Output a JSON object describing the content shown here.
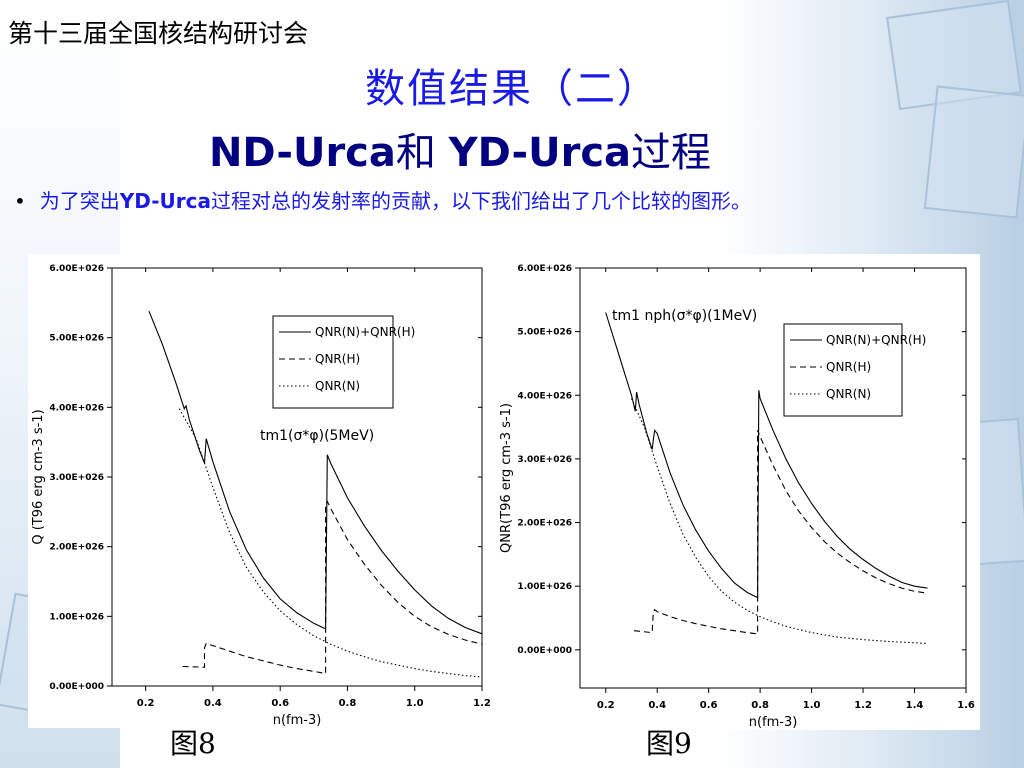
{
  "header": {
    "conference": "第十三届全国核结构研讨会",
    "title": "数值结果（二）",
    "subtitle_bold1": "ND-Urca",
    "subtitle_mid": "和 ",
    "subtitle_bold2": "YD-Urca",
    "subtitle_end": "过程"
  },
  "bullet": {
    "pre": "为了突出",
    "bold": "YD-Urca",
    "post": "过程对总的发射率的贡献，以下我们给出了几个比较的图形。"
  },
  "figure_labels": [
    "图8",
    "图9"
  ],
  "chart_data": [
    {
      "type": "line",
      "xlabel": "n(fm-3)",
      "ylabel": "Q (T96 erg cm-3 s-1)",
      "annotation": "tm1(σ*φ)(5MeV)",
      "xlim": [
        0.1,
        1.2
      ],
      "ylim": [
        0,
        6e+26
      ],
      "xticks": [
        "0.2",
        "0.4",
        "0.6",
        "0.8",
        "1.0",
        "1.2"
      ],
      "yticks": [
        "0.00E+000",
        "1.00E+026",
        "2.00E+026",
        "3.00E+026",
        "4.00E+026",
        "5.00E+026",
        "6.00E+026"
      ],
      "legend": [
        "QNR(N)+QNR(H)",
        "QNR(H)",
        "QNR(N)"
      ],
      "legend_position": "top-right",
      "series": [
        {
          "name": "QNR(N)+QNR(H)",
          "style": "solid",
          "x": [
            0.21,
            0.25,
            0.29,
            0.315,
            0.32,
            0.33,
            0.36,
            0.375,
            0.38,
            0.4,
            0.45,
            0.5,
            0.55,
            0.6,
            0.65,
            0.7,
            0.735,
            0.74,
            0.75,
            0.8,
            0.85,
            0.9,
            0.95,
            1.0,
            1.05,
            1.1,
            1.15,
            1.2
          ],
          "y": [
            5.38e+26,
            4.9e+26,
            4.35e+26,
            3.98e+26,
            4.02e+26,
            3.82e+26,
            3.38e+26,
            3.2e+26,
            3.55e+26,
            3.22e+26,
            2.5e+26,
            1.95e+26,
            1.55e+26,
            1.25e+26,
            1.05e+26,
            9e+25,
            8.2e+25,
            3.32e+26,
            3.2e+26,
            2.7e+26,
            2.3e+26,
            1.95e+26,
            1.65e+26,
            1.38e+26,
            1.15e+26,
            9.7e+25,
            8.4e+25,
            7.5e+25
          ]
        },
        {
          "name": "QNR(H)",
          "style": "dashed",
          "x": [
            0.31,
            0.375,
            0.375,
            0.38,
            0.4,
            0.45,
            0.5,
            0.55,
            0.6,
            0.65,
            0.7,
            0.735,
            0.735,
            0.74,
            0.75,
            0.8,
            0.85,
            0.9,
            0.95,
            1.0,
            1.05,
            1.1,
            1.15,
            1.2
          ],
          "y": [
            2.8e+25,
            2.7e+25,
            5.5e+25,
            6.1e+25,
            5.8e+25,
            5e+25,
            4.2e+25,
            3.6e+25,
            3e+25,
            2.5e+25,
            2.1e+25,
            1.8e+25,
            2.6e+26,
            2.65e+26,
            2.55e+26,
            2.1e+26,
            1.75e+26,
            1.45e+26,
            1.2e+26,
            1e+26,
            8.5e+25,
            7.4e+25,
            6.6e+25,
            6e+25
          ]
        },
        {
          "name": "QNR(N)",
          "style": "dotted",
          "x": [
            0.3,
            0.35,
            0.4,
            0.45,
            0.5,
            0.55,
            0.6,
            0.65,
            0.7,
            0.75,
            0.8,
            0.85,
            0.9,
            0.95,
            1.0,
            1.05,
            1.1,
            1.15,
            1.2
          ],
          "y": [
            3.98e+26,
            3.55e+26,
            2.85e+26,
            2.2e+26,
            1.7e+26,
            1.35e+26,
            1.08e+26,
            8.8e+25,
            7.2e+25,
            6e+25,
            5e+25,
            4.2e+25,
            3.5e+25,
            3e+25,
            2.5e+25,
            2.1e+25,
            1.8e+25,
            1.5e+25,
            1.3e+25
          ]
        }
      ]
    },
    {
      "type": "line",
      "xlabel": "n(fm-3)",
      "ylabel": "QNR(T96 erg cm-3 s-1)",
      "annotation": "tm1 nph(σ*φ)(1MeV)",
      "xlim": [
        0.1,
        1.6
      ],
      "ylim": [
        -6e+25,
        6e+26
      ],
      "xticks": [
        "0.2",
        "0.4",
        "0.6",
        "0.8",
        "1.0",
        "1.2",
        "1.4",
        "1.6"
      ],
      "yticks": [
        "0.00E+000",
        "1.00E+026",
        "2.00E+026",
        "3.00E+026",
        "4.00E+026",
        "5.00E+026",
        "6.00E+026"
      ],
      "legend": [
        "QNR(N)+QNR(H)",
        "QNR(H)",
        "QNR(N)"
      ],
      "legend_position": "top-right",
      "series": [
        {
          "name": "QNR(N)+QNR(H)",
          "style": "solid",
          "x": [
            0.2,
            0.25,
            0.3,
            0.315,
            0.32,
            0.33,
            0.36,
            0.38,
            0.39,
            0.4,
            0.45,
            0.5,
            0.55,
            0.6,
            0.65,
            0.7,
            0.75,
            0.79,
            0.795,
            0.8,
            0.85,
            0.9,
            0.95,
            1.0,
            1.05,
            1.1,
            1.15,
            1.2,
            1.25,
            1.3,
            1.35,
            1.4,
            1.45
          ],
          "y": [
            5.3e+26,
            4.65e+26,
            4e+26,
            3.75e+26,
            4.05e+26,
            3.85e+26,
            3.4e+26,
            3.15e+26,
            3.45e+26,
            3.4e+26,
            2.78e+26,
            2.28e+26,
            1.88e+26,
            1.55e+26,
            1.28e+26,
            1.05e+26,
            9e+25,
            8.2e+25,
            4.08e+26,
            3.95e+26,
            3.45e+26,
            3e+26,
            2.62e+26,
            2.3e+26,
            2.02e+26,
            1.78e+26,
            1.58e+26,
            1.42e+26,
            1.28e+26,
            1.16e+26,
            1.06e+26,
            1e+26,
            9.7e+25
          ]
        },
        {
          "name": "QNR(H)",
          "style": "dashed",
          "x": [
            0.31,
            0.38,
            0.385,
            0.39,
            0.4,
            0.45,
            0.5,
            0.55,
            0.6,
            0.65,
            0.7,
            0.75,
            0.79,
            0.79,
            0.8,
            0.85,
            0.9,
            0.95,
            1.0,
            1.05,
            1.1,
            1.15,
            1.2,
            1.25,
            1.3,
            1.35,
            1.4,
            1.45
          ],
          "y": [
            3e+25,
            2.7e+25,
            5.8e+25,
            6.3e+25,
            6e+25,
            5.2e+25,
            4.6e+25,
            4.1e+25,
            3.7e+25,
            3.3e+25,
            3e+25,
            2.7e+25,
            2.5e+25,
            3.45e+26,
            3.35e+26,
            2.9e+26,
            2.5e+26,
            2.18e+26,
            1.92e+26,
            1.7e+26,
            1.52e+26,
            1.37e+26,
            1.24e+26,
            1.13e+26,
            1.04e+26,
            9.7e+25,
            9.2e+25,
            8.9e+25
          ]
        },
        {
          "name": "QNR(N)",
          "style": "dotted",
          "x": [
            0.3,
            0.35,
            0.4,
            0.45,
            0.5,
            0.55,
            0.6,
            0.65,
            0.7,
            0.75,
            0.8,
            0.85,
            0.9,
            0.95,
            1.0,
            1.1,
            1.2,
            1.3,
            1.4,
            1.45
          ],
          "y": [
            3.95e+26,
            3.5e+26,
            2.88e+26,
            2.3e+26,
            1.82e+26,
            1.45e+26,
            1.15e+26,
            9.2e+25,
            7.5e+25,
            6.2e+25,
            5.2e+25,
            4.4e+25,
            3.7e+25,
            3.2e+25,
            2.7e+25,
            2e+25,
            1.6e+25,
            1.3e+25,
            1.1e+25,
            1e+25
          ]
        }
      ]
    }
  ]
}
